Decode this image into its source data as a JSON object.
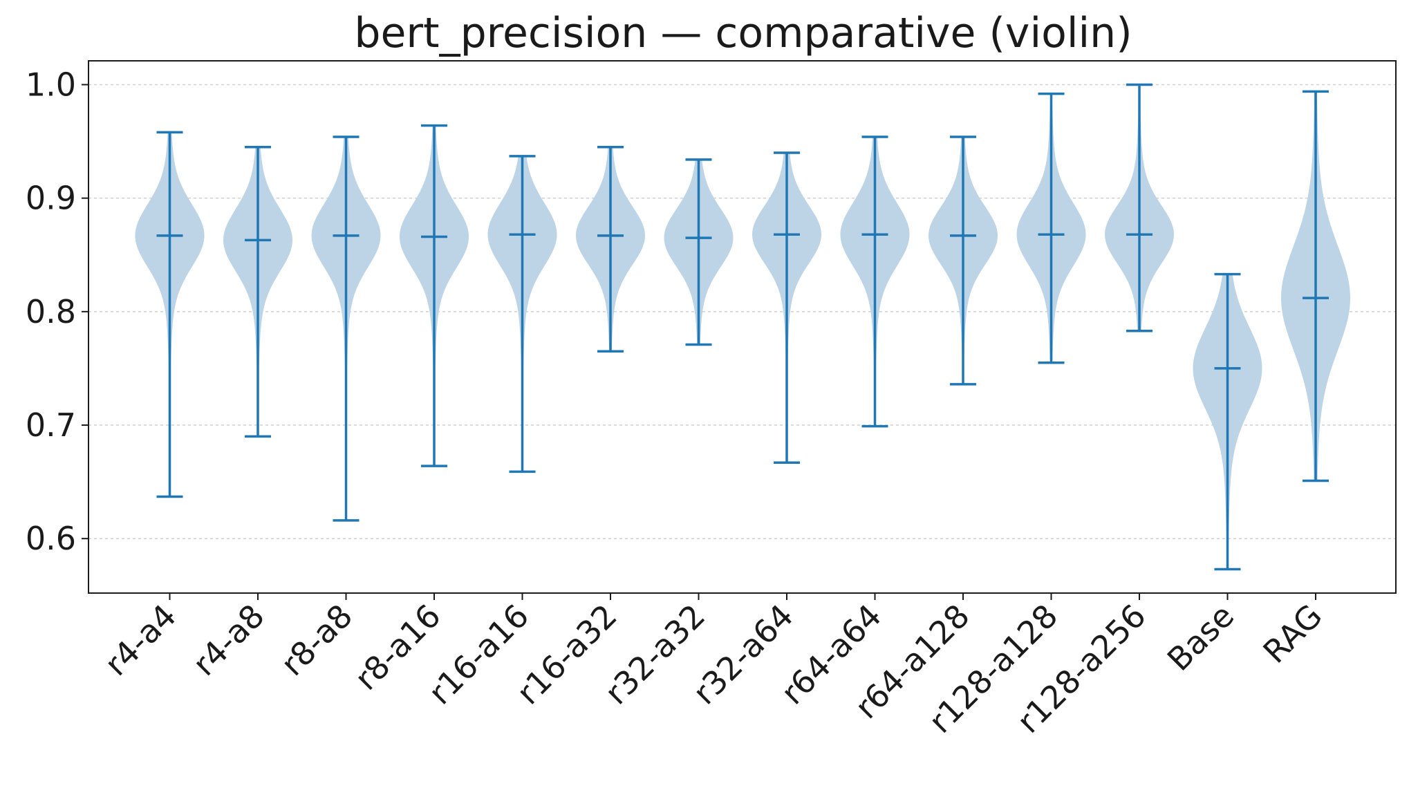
{
  "chart_data": {
    "type": "violin",
    "title": "bert_precision — comparative (violin)",
    "xlabel": "",
    "ylabel": "",
    "ylim": [
      0.552,
      1.021
    ],
    "yticks": [
      "0.6",
      "0.7",
      "0.8",
      "0.9",
      "1.0"
    ],
    "ytick_values": [
      0.6,
      0.7,
      0.8,
      0.9,
      1.0
    ],
    "grid": "horizontal dotted",
    "legend": "none",
    "colors": {
      "line": "#1f77b4",
      "body": "#bcd4e6",
      "axis": "#1a1a1a",
      "grid": "#cfcfcf"
    },
    "categories": [
      "r4-a4",
      "r4-a8",
      "r8-a8",
      "r8-a16",
      "r16-a16",
      "r16-a32",
      "r32-a32",
      "r32-a64",
      "r64-a64",
      "r64-a128",
      "r128-a128",
      "r128-a256",
      "Base",
      "RAG"
    ],
    "min": [
      0.637,
      0.69,
      0.616,
      0.664,
      0.659,
      0.765,
      0.771,
      0.667,
      0.699,
      0.736,
      0.755,
      0.783,
      0.573,
      0.651
    ],
    "median": [
      0.867,
      0.863,
      0.867,
      0.866,
      0.868,
      0.867,
      0.865,
      0.868,
      0.868,
      0.867,
      0.868,
      0.868,
      0.75,
      0.812
    ],
    "max": [
      0.958,
      0.945,
      0.954,
      0.964,
      0.937,
      0.945,
      0.934,
      0.94,
      0.954,
      0.954,
      0.992,
      1.0,
      0.833,
      0.994
    ],
    "spread": [
      0.027,
      0.027,
      0.027,
      0.027,
      0.027,
      0.025,
      0.025,
      0.025,
      0.027,
      0.025,
      0.027,
      0.025,
      0.035,
      0.045
    ]
  }
}
